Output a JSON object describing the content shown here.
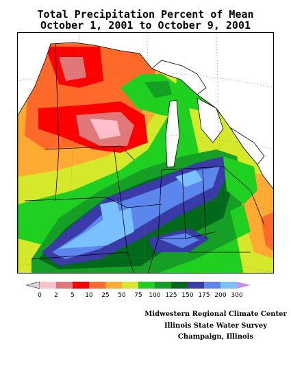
{
  "title_line1": "Total Precipitation Percent of Mean",
  "title_line2": "October 1, 2001 to October 9, 2001",
  "legend": {
    "ticks": [
      "0",
      "2",
      "5",
      "10",
      "25",
      "50",
      "75",
      "100",
      "125",
      "150",
      "175",
      "200",
      "300"
    ],
    "colors": [
      "#d8d8d8",
      "#ffc0cb",
      "#e0787a",
      "#ff0000",
      "#ff6a2a",
      "#ffaa33",
      "#d5e82a",
      "#20d020",
      "#15a025",
      "#006a1a",
      "#3a3aa8",
      "#5a86ee",
      "#78c0ff",
      "#c890ee"
    ]
  },
  "credits": {
    "line1": "Midwestern Regional Climate Center",
    "line2": "Illinois State Water Survey",
    "line3": "Champaign, Illinois"
  }
}
